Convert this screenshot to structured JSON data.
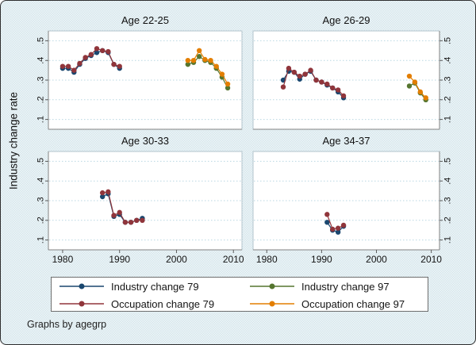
{
  "figure": {
    "ylabel": "Industry change rate",
    "note": "Graphs by agegrp"
  },
  "axes": {
    "x_ticks": [
      "1980",
      "1990",
      "2000",
      "2010"
    ],
    "x_tick_years": [
      1980,
      1990,
      2000,
      2010
    ],
    "y_ticks": [
      ".5",
      ".4",
      ".3",
      ".2",
      ".1"
    ],
    "y_tick_values": [
      0.5,
      0.4,
      0.3,
      0.2,
      0.1
    ],
    "x_range": [
      1977.5,
      2011.5
    ],
    "y_range": [
      0.05,
      0.55
    ],
    "grid": "on",
    "legend_position": "bottom"
  },
  "colors": {
    "navy": "#1a476f",
    "maroon": "#90353b",
    "forest_green": "#55752f",
    "orange": "#e37e00",
    "grid": "#b9d7e2",
    "panel_border": "#b3c4cc",
    "axis": "#828282",
    "tick": "#5a5a5a",
    "plot_bg": "#ffffff",
    "text": "#141414"
  },
  "legend": {
    "entries": [
      {
        "label": "Industry change 79",
        "color": "#1a476f"
      },
      {
        "label": "Occupation change 79",
        "color": "#90353b"
      },
      {
        "label": "Industry change 97",
        "color": "#55752f"
      },
      {
        "label": "Occupation change 97",
        "color": "#e37e00"
      }
    ]
  },
  "chart_data": [
    {
      "type": "line",
      "title": "Age 22-25",
      "series": [
        {
          "name": "Industry change 79",
          "color": "#1a476f",
          "points": [
            [
              1980,
              0.36
            ],
            [
              1981,
              0.36
            ],
            [
              1982,
              0.34
            ],
            [
              1983,
              0.38
            ],
            [
              1984,
              0.41
            ],
            [
              1985,
              0.425
            ],
            [
              1986,
              0.44
            ],
            [
              1987,
              0.45
            ],
            [
              1988,
              0.44
            ],
            [
              1989,
              0.38
            ],
            [
              1990,
              0.36
            ]
          ]
        },
        {
          "name": "Occupation change 79",
          "color": "#90353b",
          "points": [
            [
              1980,
              0.37
            ],
            [
              1981,
              0.37
            ],
            [
              1982,
              0.35
            ],
            [
              1983,
              0.385
            ],
            [
              1984,
              0.415
            ],
            [
              1985,
              0.43
            ],
            [
              1986,
              0.46
            ],
            [
              1987,
              0.45
            ],
            [
              1988,
              0.445
            ],
            [
              1989,
              0.38
            ],
            [
              1990,
              0.37
            ]
          ]
        },
        {
          "name": "Industry change 97",
          "color": "#55752f",
          "points": [
            [
              2002,
              0.38
            ],
            [
              2003,
              0.39
            ],
            [
              2004,
              0.42
            ],
            [
              2005,
              0.4
            ],
            [
              2006,
              0.39
            ],
            [
              2007,
              0.36
            ],
            [
              2008,
              0.315
            ],
            [
              2009,
              0.26
            ]
          ]
        },
        {
          "name": "Occupation change 97",
          "color": "#e37e00",
          "points": [
            [
              2002,
              0.4
            ],
            [
              2003,
              0.4
            ],
            [
              2004,
              0.45
            ],
            [
              2005,
              0.405
            ],
            [
              2006,
              0.4
            ],
            [
              2007,
              0.37
            ],
            [
              2008,
              0.33
            ],
            [
              2009,
              0.28
            ]
          ]
        }
      ]
    },
    {
      "type": "line",
      "title": "Age 26-29",
      "series": [
        {
          "name": "Industry change 79",
          "color": "#1a476f",
          "points": [
            [
              1983,
              0.3
            ],
            [
              1984,
              0.345
            ],
            [
              1985,
              0.34
            ],
            [
              1986,
              0.305
            ],
            [
              1987,
              0.33
            ],
            [
              1988,
              0.345
            ],
            [
              1989,
              0.3
            ],
            [
              1990,
              0.29
            ],
            [
              1991,
              0.275
            ],
            [
              1992,
              0.26
            ],
            [
              1993,
              0.24
            ],
            [
              1994,
              0.21
            ]
          ]
        },
        {
          "name": "Occupation change 79",
          "color": "#90353b",
          "points": [
            [
              1983,
              0.265
            ],
            [
              1984,
              0.36
            ],
            [
              1985,
              0.34
            ],
            [
              1986,
              0.32
            ],
            [
              1987,
              0.33
            ],
            [
              1988,
              0.35
            ],
            [
              1989,
              0.3
            ],
            [
              1990,
              0.29
            ],
            [
              1991,
              0.28
            ],
            [
              1992,
              0.26
            ],
            [
              1993,
              0.25
            ],
            [
              1994,
              0.22
            ]
          ]
        },
        {
          "name": "Industry change 97",
          "color": "#55752f",
          "points": [
            [
              2006,
              0.27
            ],
            [
              2007,
              0.285
            ],
            [
              2008,
              0.235
            ],
            [
              2009,
              0.2
            ]
          ]
        },
        {
          "name": "Occupation change 97",
          "color": "#e37e00",
          "points": [
            [
              2006,
              0.32
            ],
            [
              2007,
              0.29
            ],
            [
              2008,
              0.24
            ],
            [
              2009,
              0.21
            ]
          ]
        }
      ]
    },
    {
      "type": "line",
      "title": "Age 30-33",
      "series": [
        {
          "name": "Industry change 79",
          "color": "#1a476f",
          "points": [
            [
              1987,
              0.32
            ],
            [
              1988,
              0.335
            ],
            [
              1989,
              0.22
            ],
            [
              1990,
              0.23
            ],
            [
              1991,
              0.19
            ],
            [
              1992,
              0.19
            ],
            [
              1993,
              0.2
            ],
            [
              1994,
              0.21
            ]
          ]
        },
        {
          "name": "Occupation change 79",
          "color": "#90353b",
          "points": [
            [
              1987,
              0.34
            ],
            [
              1988,
              0.345
            ],
            [
              1989,
              0.225
            ],
            [
              1990,
              0.24
            ],
            [
              1991,
              0.19
            ],
            [
              1992,
              0.19
            ],
            [
              1993,
              0.2
            ],
            [
              1994,
              0.2
            ]
          ]
        }
      ]
    },
    {
      "type": "line",
      "title": "Age 34-37",
      "series": [
        {
          "name": "Industry change 79",
          "color": "#1a476f",
          "points": [
            [
              1991,
              0.19
            ],
            [
              1992,
              0.15
            ],
            [
              1993,
              0.14
            ],
            [
              1994,
              0.17
            ]
          ]
        },
        {
          "name": "Occupation change 79",
          "color": "#90353b",
          "points": [
            [
              1991,
              0.23
            ],
            [
              1992,
              0.155
            ],
            [
              1993,
              0.16
            ],
            [
              1994,
              0.175
            ]
          ]
        }
      ]
    }
  ]
}
